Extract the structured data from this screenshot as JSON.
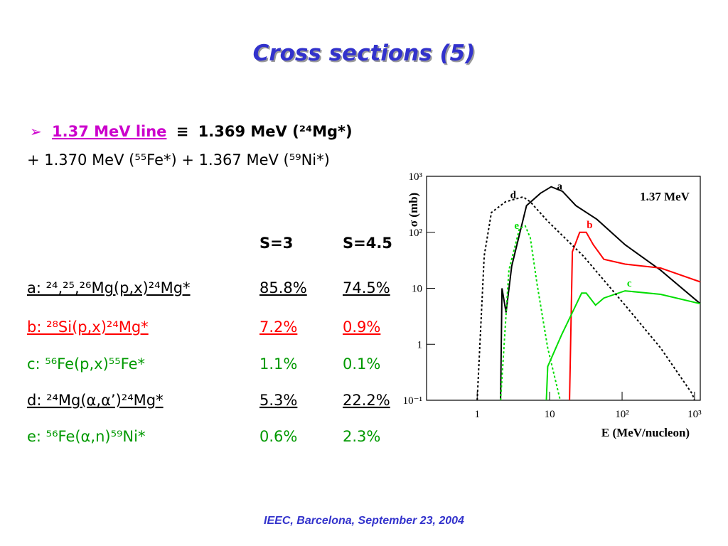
{
  "slide": {
    "title": "Cross sections (5)",
    "bullet": {
      "line": "1.37 MeV line",
      "symbol": "≡",
      "main": "1.369 MeV (²⁴Mg*)"
    },
    "subline": "+ 1.370 MeV (⁵⁵Fe*) + 1.367 MeV (⁵⁹Ni*)",
    "table": {
      "headers": [
        "S=3",
        "S=4.5"
      ],
      "rows": [
        {
          "cells": [
            "a: ²⁴,²⁵,²⁶Mg(p,x)²⁴Mg*",
            "85.8%",
            "74.5%"
          ],
          "color": "#000000",
          "underline": true
        },
        {
          "cells": [
            "b: ²⁸Si(p,x)²⁴Mg*",
            "7.2%",
            "0.9%"
          ],
          "color": "#ff0000",
          "underline": true
        },
        {
          "cells": [
            "c: ⁵⁶Fe(p,x)⁵⁵Fe*",
            "1.1%",
            "0.1%"
          ],
          "color": "#009900",
          "underline": false
        },
        {
          "cells": [
            "d: ²⁴Mg(α,α’)²⁴Mg*",
            "5.3%",
            "22.2%"
          ],
          "color": "#000000",
          "underline": true
        },
        {
          "cells": [
            "e: ⁵⁶Fe(α,n)⁵⁹Ni*",
            "0.6%",
            "2.3%"
          ],
          "color": "#009900",
          "underline": false
        }
      ]
    },
    "footer": "IEEC, Barcelona, September 23, 2004"
  },
  "chart_data": {
    "type": "line",
    "annotation": "1.37 MeV",
    "x_label": "E (MeV/nucleon)",
    "y_label": "σ (mb)",
    "log_x": true,
    "log_y": true,
    "xlim": [
      0.2,
      1200
    ],
    "ylim": [
      0.1,
      1000
    ],
    "xticks": [
      1,
      10,
      {
        "value": 100,
        "label": "10²"
      },
      {
        "value": 1000,
        "label": "10³"
      }
    ],
    "yticks": [
      {
        "value": 0.1,
        "label": "10⁻¹"
      },
      1,
      10,
      {
        "value": 100,
        "label": "10²"
      },
      {
        "value": 1000,
        "label": "10³"
      }
    ],
    "series": [
      {
        "name": "a",
        "color": "#000000",
        "dash": false,
        "x": [
          2.1,
          2.2,
          2.5,
          3,
          4.8,
          7.5,
          10.5,
          15,
          23,
          45,
          110,
          340,
          1200
        ],
        "values": [
          0.1,
          10,
          3.7,
          25,
          300,
          500,
          650,
          540,
          300,
          170,
          60,
          21,
          5.3
        ]
      },
      {
        "name": "b",
        "color": "#ff0000",
        "dash": false,
        "x": [
          18.8,
          20.6,
          26,
          32,
          40,
          56,
          110,
          340,
          1200
        ],
        "values": [
          0.1,
          45,
          100,
          100,
          60,
          33,
          27,
          23,
          13
        ]
      },
      {
        "name": "c",
        "color": "#00dd00",
        "dash": false,
        "x": [
          9,
          9.4,
          14.7,
          20.6,
          27.6,
          32,
          43,
          56,
          110,
          340,
          1200
        ],
        "values": [
          0.1,
          0.4,
          1.5,
          3.7,
          8.2,
          8.2,
          5,
          6.7,
          9,
          7.8,
          5.3
        ]
      },
      {
        "name": "d",
        "color": "#000000",
        "dash": true,
        "x": [
          1,
          1.25,
          1.57,
          2.45,
          4.3,
          5.4,
          9.4,
          29,
          110,
          340,
          930,
          1000
        ],
        "values": [
          0.1,
          38,
          225,
          350,
          430,
          350,
          158,
          38,
          5,
          0.86,
          0.13,
          0.1
        ]
      },
      {
        "name": "e",
        "color": "#00dd00",
        "dash": true,
        "x": [
          2.1,
          2.74,
          3.84,
          4.6,
          5.4,
          6.7,
          9.4,
          14
        ],
        "values": [
          0.1,
          21,
          118,
          130,
          80,
          12,
          0.86,
          0.1
        ]
      }
    ]
  }
}
